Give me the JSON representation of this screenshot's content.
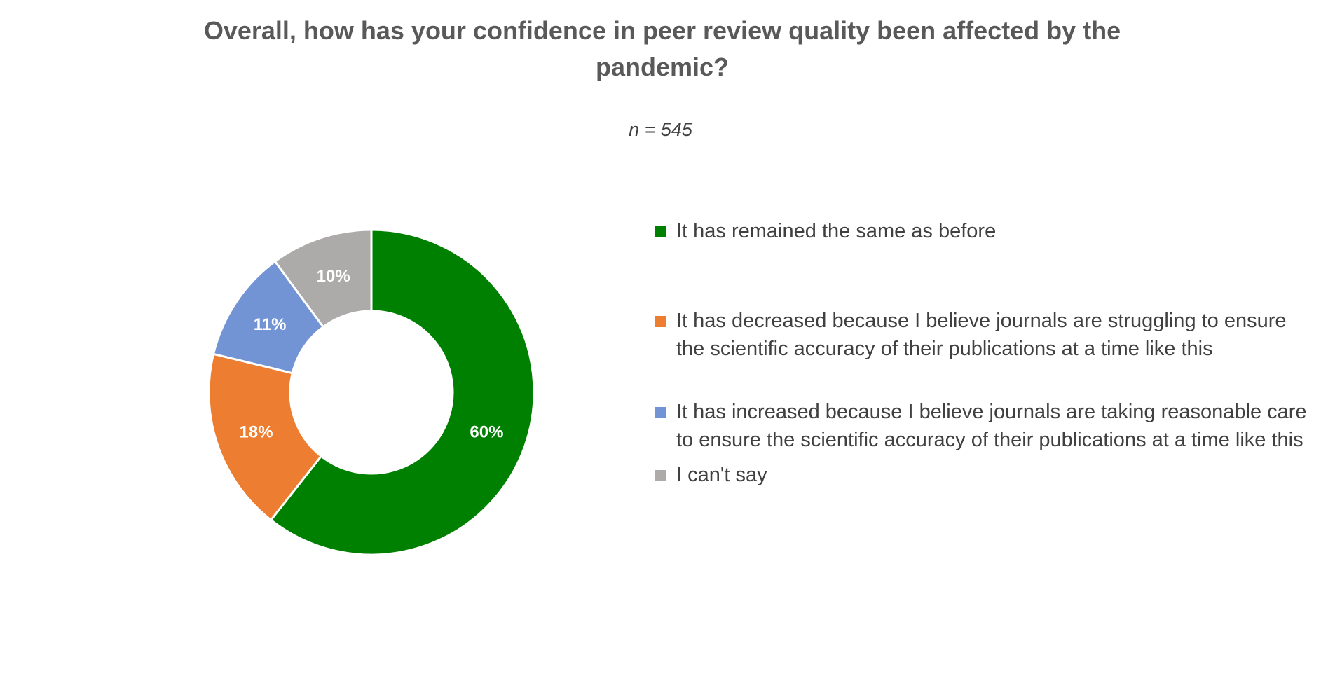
{
  "chart_data": {
    "type": "pie",
    "variant": "donut",
    "title": "Overall, how has your confidence in peer review quality been affected by the pandemic?",
    "subtitle": "n = 545",
    "categories": [
      "It has remained the same as before",
      "It has decreased because I believe journals are struggling to ensure the scientific accuracy of their publications at a time like this",
      "It has increased because I believe journals are taking reasonable care to ensure the scientific accuracy of their publications at a time like this",
      "I can't say"
    ],
    "values": [
      60,
      18,
      11,
      10
    ],
    "value_labels": [
      "60%",
      "18%",
      "11%",
      "10%"
    ],
    "colors": [
      "#008000",
      "#ED7D31",
      "#7294D4",
      "#ADAAAA"
    ],
    "start_angle": "12 o'clock",
    "direction": "clockwise",
    "legend_position": "right"
  }
}
